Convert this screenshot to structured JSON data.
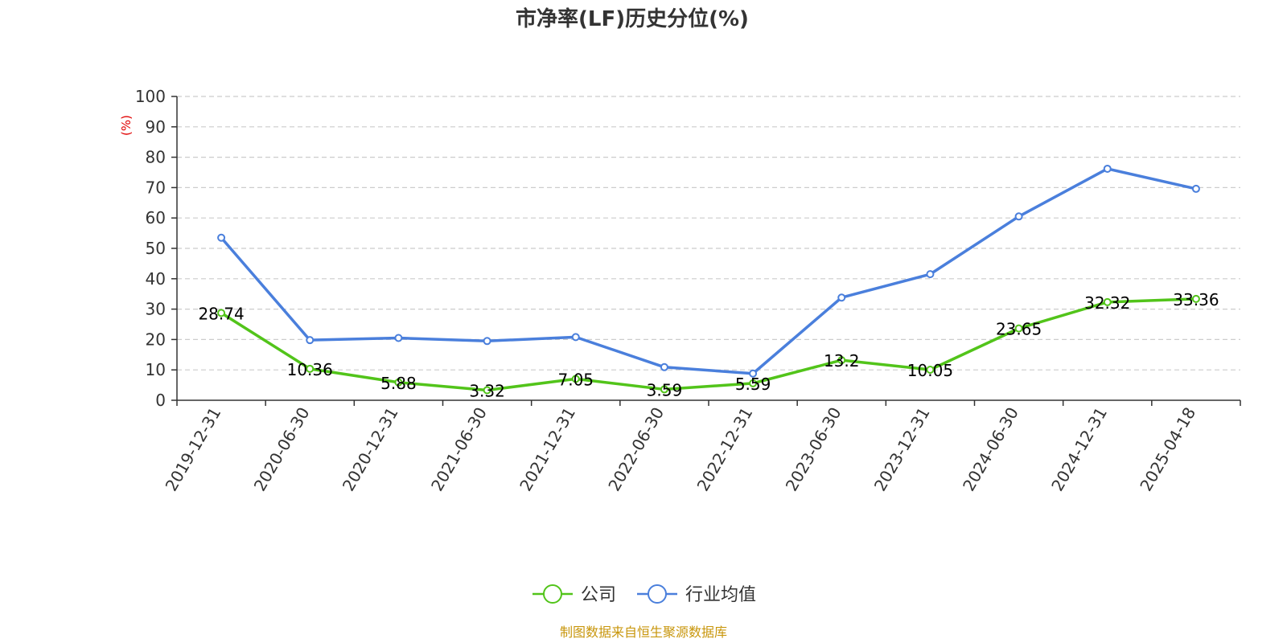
{
  "chart_data": {
    "type": "line",
    "title": "市净率(LF)历史分位(%)",
    "ylabel": "(%)",
    "xlabel": "",
    "ylim": [
      0,
      100
    ],
    "yticks": [
      0,
      10,
      20,
      30,
      40,
      50,
      60,
      70,
      80,
      90,
      100
    ],
    "categories": [
      "2019-12-31",
      "2020-06-30",
      "2020-12-31",
      "2021-06-30",
      "2021-12-31",
      "2022-06-30",
      "2022-12-31",
      "2023-06-30",
      "2023-12-31",
      "2024-06-30",
      "2024-12-31",
      "2025-04-18"
    ],
    "grid": true,
    "legend_position": "bottom",
    "series": [
      {
        "name": "公司",
        "color": "#52c41a",
        "values": [
          28.74,
          10.36,
          5.88,
          3.32,
          7.05,
          3.59,
          5.59,
          13.2,
          10.05,
          23.65,
          32.32,
          33.36
        ],
        "labels": [
          "28.74",
          "10.36",
          "5.88",
          "3.32",
          "7.05",
          "3.59",
          "5.59",
          "13.2",
          "10.05",
          "23.65",
          "32.32",
          "33.36"
        ]
      },
      {
        "name": "行业均值",
        "color": "#4a7fdc",
        "values": [
          53.5,
          19.8,
          20.5,
          19.5,
          20.8,
          10.9,
          8.8,
          33.8,
          41.5,
          60.5,
          76.2,
          69.6
        ]
      }
    ]
  },
  "colors": {
    "axis": "#333333",
    "grid": "#cccccc",
    "unit": "#e00000",
    "source": "#c8960c"
  },
  "footer": {
    "source": "制图数据来自恒生聚源数据库"
  }
}
